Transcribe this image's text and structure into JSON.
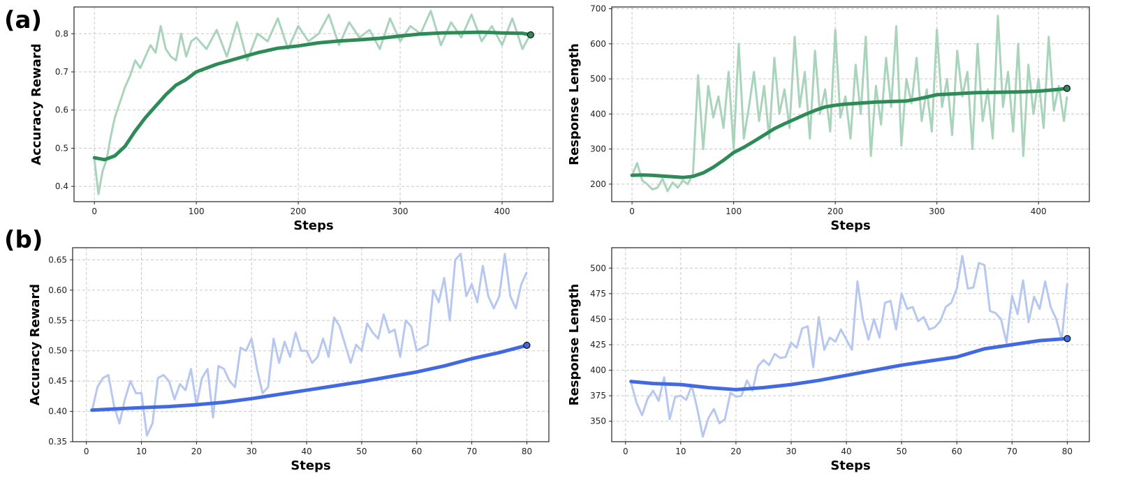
{
  "panel_labels": {
    "a": "(a)",
    "b": "(b)"
  },
  "colors": {
    "green_raw": "#a9d4bb",
    "green_smooth": "#2e8b57",
    "blue_raw": "#b7c8f0",
    "blue_smooth": "#4169e1",
    "grid": "#c8c8c8"
  },
  "chart_data": [
    {
      "id": "a-left",
      "type": "line",
      "title": "",
      "xlabel": "Steps",
      "ylabel": "Accuracy Reward",
      "xlim": [
        -20,
        450
      ],
      "ylim": [
        0.36,
        0.87
      ],
      "xticks": [
        0,
        100,
        200,
        300,
        400
      ],
      "yticks": [
        0.4,
        0.5,
        0.6,
        0.7,
        0.8
      ],
      "ytick_decimals": 1,
      "grid": true,
      "raw_color": "green_raw",
      "smooth_color": "green_smooth",
      "series": [
        {
          "name": "raw",
          "x": [
            0,
            4,
            8,
            12,
            16,
            20,
            25,
            30,
            35,
            40,
            45,
            50,
            55,
            60,
            65,
            70,
            75,
            80,
            85,
            90,
            95,
            100,
            110,
            120,
            130,
            140,
            150,
            160,
            170,
            180,
            190,
            200,
            210,
            220,
            230,
            240,
            250,
            260,
            270,
            280,
            290,
            300,
            310,
            320,
            330,
            340,
            350,
            360,
            370,
            380,
            390,
            400,
            410,
            420,
            428
          ],
          "values": [
            0.47,
            0.38,
            0.44,
            0.47,
            0.53,
            0.58,
            0.62,
            0.66,
            0.69,
            0.73,
            0.71,
            0.74,
            0.77,
            0.75,
            0.82,
            0.76,
            0.74,
            0.73,
            0.8,
            0.74,
            0.78,
            0.79,
            0.76,
            0.81,
            0.74,
            0.83,
            0.73,
            0.8,
            0.78,
            0.84,
            0.76,
            0.82,
            0.78,
            0.8,
            0.85,
            0.77,
            0.83,
            0.79,
            0.81,
            0.76,
            0.84,
            0.78,
            0.82,
            0.8,
            0.86,
            0.77,
            0.83,
            0.79,
            0.85,
            0.78,
            0.82,
            0.77,
            0.84,
            0.76,
            0.8
          ]
        },
        {
          "name": "smoothed",
          "x": [
            0,
            10,
            20,
            30,
            40,
            50,
            60,
            70,
            80,
            90,
            100,
            120,
            140,
            160,
            180,
            200,
            220,
            240,
            260,
            280,
            300,
            320,
            340,
            360,
            380,
            400,
            420,
            428
          ],
          "values": [
            0.475,
            0.47,
            0.48,
            0.505,
            0.545,
            0.58,
            0.61,
            0.64,
            0.665,
            0.68,
            0.7,
            0.72,
            0.735,
            0.75,
            0.762,
            0.768,
            0.776,
            0.781,
            0.784,
            0.788,
            0.794,
            0.799,
            0.802,
            0.803,
            0.804,
            0.802,
            0.801,
            0.797
          ]
        }
      ]
    },
    {
      "id": "a-right",
      "type": "line",
      "title": "",
      "xlabel": "Steps",
      "ylabel": "Response Length",
      "xlim": [
        -20,
        450
      ],
      "ylim": [
        150,
        705
      ],
      "xticks": [
        0,
        100,
        200,
        300,
        400
      ],
      "yticks": [
        200,
        300,
        400,
        500,
        600,
        700
      ],
      "ytick_decimals": 0,
      "grid": true,
      "raw_color": "green_raw",
      "smooth_color": "green_smooth",
      "series": [
        {
          "name": "raw",
          "x": [
            0,
            5,
            10,
            15,
            20,
            25,
            30,
            35,
            40,
            45,
            50,
            55,
            60,
            65,
            70,
            75,
            80,
            85,
            90,
            95,
            100,
            105,
            110,
            115,
            120,
            125,
            130,
            135,
            140,
            145,
            150,
            155,
            160,
            165,
            170,
            175,
            180,
            185,
            190,
            195,
            200,
            205,
            210,
            215,
            220,
            225,
            230,
            235,
            240,
            245,
            250,
            255,
            260,
            265,
            270,
            275,
            280,
            285,
            290,
            295,
            300,
            305,
            310,
            315,
            320,
            325,
            330,
            335,
            340,
            345,
            350,
            355,
            360,
            365,
            370,
            375,
            380,
            385,
            390,
            395,
            400,
            405,
            410,
            415,
            420,
            425,
            428
          ],
          "values": [
            225,
            260,
            210,
            200,
            185,
            190,
            215,
            180,
            205,
            190,
            210,
            200,
            230,
            510,
            300,
            480,
            390,
            450,
            360,
            520,
            300,
            600,
            330,
            420,
            520,
            380,
            480,
            330,
            560,
            400,
            470,
            360,
            620,
            420,
            520,
            330,
            580,
            400,
            470,
            350,
            640,
            390,
            450,
            330,
            540,
            400,
            620,
            280,
            480,
            370,
            560,
            420,
            650,
            310,
            500,
            430,
            560,
            380,
            470,
            350,
            640,
            420,
            500,
            340,
            580,
            450,
            520,
            300,
            600,
            380,
            470,
            330,
            680,
            420,
            520,
            350,
            600,
            280,
            540,
            400,
            500,
            360,
            620,
            410,
            480,
            380,
            450
          ]
        },
        {
          "name": "smoothed",
          "x": [
            0,
            10,
            20,
            30,
            40,
            50,
            60,
            70,
            80,
            90,
            100,
            110,
            120,
            130,
            140,
            150,
            160,
            170,
            180,
            190,
            200,
            210,
            220,
            230,
            240,
            250,
            260,
            270,
            280,
            290,
            300,
            320,
            340,
            360,
            380,
            400,
            420,
            428
          ],
          "values": [
            225,
            226,
            225,
            223,
            221,
            219,
            222,
            232,
            248,
            268,
            290,
            305,
            322,
            340,
            358,
            372,
            385,
            398,
            410,
            420,
            425,
            428,
            430,
            432,
            434,
            435,
            436,
            437,
            442,
            448,
            455,
            458,
            461,
            462,
            463,
            465,
            470,
            473
          ]
        }
      ]
    },
    {
      "id": "b-left",
      "type": "line",
      "title": "",
      "xlabel": "Steps",
      "ylabel": "Accuracy Reward",
      "xlim": [
        -2.5,
        84
      ],
      "ylim": [
        0.35,
        0.67
      ],
      "xticks": [
        0,
        10,
        20,
        30,
        40,
        50,
        60,
        70,
        80
      ],
      "yticks": [
        0.35,
        0.4,
        0.45,
        0.5,
        0.55,
        0.6,
        0.65
      ],
      "ytick_decimals": 2,
      "grid": true,
      "raw_color": "blue_raw",
      "smooth_color": "blue_smooth",
      "series": [
        {
          "name": "raw",
          "x": [
            1,
            2,
            3,
            4,
            5,
            6,
            7,
            8,
            9,
            10,
            11,
            12,
            13,
            14,
            15,
            16,
            17,
            18,
            19,
            20,
            21,
            22,
            23,
            24,
            25,
            26,
            27,
            28,
            29,
            30,
            31,
            32,
            33,
            34,
            35,
            36,
            37,
            38,
            39,
            40,
            41,
            42,
            43,
            44,
            45,
            46,
            47,
            48,
            49,
            50,
            51,
            52,
            53,
            54,
            55,
            56,
            57,
            58,
            59,
            60,
            61,
            62,
            63,
            64,
            65,
            66,
            67,
            68,
            69,
            70,
            71,
            72,
            73,
            74,
            75,
            76,
            77,
            78,
            79,
            80
          ],
          "values": [
            0.4,
            0.44,
            0.455,
            0.46,
            0.41,
            0.38,
            0.42,
            0.45,
            0.43,
            0.43,
            0.36,
            0.38,
            0.455,
            0.46,
            0.45,
            0.42,
            0.445,
            0.435,
            0.47,
            0.41,
            0.455,
            0.47,
            0.39,
            0.475,
            0.47,
            0.45,
            0.44,
            0.505,
            0.5,
            0.52,
            0.47,
            0.43,
            0.44,
            0.52,
            0.48,
            0.515,
            0.49,
            0.53,
            0.5,
            0.5,
            0.48,
            0.49,
            0.52,
            0.49,
            0.555,
            0.54,
            0.51,
            0.48,
            0.51,
            0.5,
            0.545,
            0.53,
            0.52,
            0.56,
            0.53,
            0.535,
            0.49,
            0.55,
            0.54,
            0.5,
            0.505,
            0.51,
            0.6,
            0.58,
            0.62,
            0.55,
            0.65,
            0.66,
            0.59,
            0.61,
            0.58,
            0.64,
            0.59,
            0.57,
            0.59,
            0.66,
            0.59,
            0.57,
            0.61,
            0.63
          ]
        },
        {
          "name": "smoothed",
          "x": [
            1,
            5,
            10,
            15,
            20,
            25,
            30,
            35,
            40,
            45,
            50,
            55,
            60,
            65,
            70,
            75,
            80
          ],
          "values": [
            0.402,
            0.404,
            0.406,
            0.408,
            0.411,
            0.415,
            0.421,
            0.428,
            0.435,
            0.442,
            0.449,
            0.457,
            0.465,
            0.475,
            0.487,
            0.497,
            0.509
          ]
        }
      ]
    },
    {
      "id": "b-right",
      "type": "line",
      "title": "",
      "xlabel": "Steps",
      "ylabel": "Response Length",
      "xlim": [
        -2.5,
        84
      ],
      "ylim": [
        330,
        520
      ],
      "xticks": [
        0,
        10,
        20,
        30,
        40,
        50,
        60,
        70,
        80
      ],
      "yticks": [
        350,
        375,
        400,
        425,
        450,
        475,
        500
      ],
      "ytick_decimals": 0,
      "grid": true,
      "raw_color": "blue_raw",
      "smooth_color": "blue_smooth",
      "series": [
        {
          "name": "raw",
          "x": [
            1,
            2,
            3,
            4,
            5,
            6,
            7,
            8,
            9,
            10,
            11,
            12,
            13,
            14,
            15,
            16,
            17,
            18,
            19,
            20,
            21,
            22,
            23,
            24,
            25,
            26,
            27,
            28,
            29,
            30,
            31,
            32,
            33,
            34,
            35,
            36,
            37,
            38,
            39,
            40,
            41,
            42,
            43,
            44,
            45,
            46,
            47,
            48,
            49,
            50,
            51,
            52,
            53,
            54,
            55,
            56,
            57,
            58,
            59,
            60,
            61,
            62,
            63,
            64,
            65,
            66,
            67,
            68,
            69,
            70,
            71,
            72,
            73,
            74,
            75,
            76,
            77,
            78,
            79,
            80
          ],
          "values": [
            388,
            368,
            356,
            372,
            380,
            370,
            393,
            352,
            374,
            375,
            371,
            385,
            362,
            335,
            353,
            362,
            348,
            352,
            378,
            374,
            375,
            390,
            380,
            404,
            410,
            405,
            416,
            412,
            413,
            427,
            422,
            441,
            443,
            403,
            452,
            420,
            432,
            428,
            440,
            430,
            420,
            487,
            450,
            430,
            450,
            432,
            466,
            468,
            440,
            475,
            460,
            462,
            448,
            452,
            440,
            442,
            448,
            462,
            466,
            480,
            512,
            480,
            481,
            505,
            503,
            458,
            456,
            450,
            427,
            473,
            455,
            488,
            447,
            472,
            460,
            487,
            462,
            450,
            430,
            485
          ]
        },
        {
          "name": "smoothed",
          "x": [
            1,
            5,
            10,
            15,
            20,
            25,
            30,
            35,
            40,
            45,
            50,
            55,
            60,
            65,
            70,
            75,
            80
          ],
          "values": [
            389,
            387,
            386,
            383,
            381,
            383,
            386,
            390,
            395,
            400,
            405,
            409,
            413,
            421,
            425,
            429,
            431
          ]
        }
      ]
    }
  ]
}
